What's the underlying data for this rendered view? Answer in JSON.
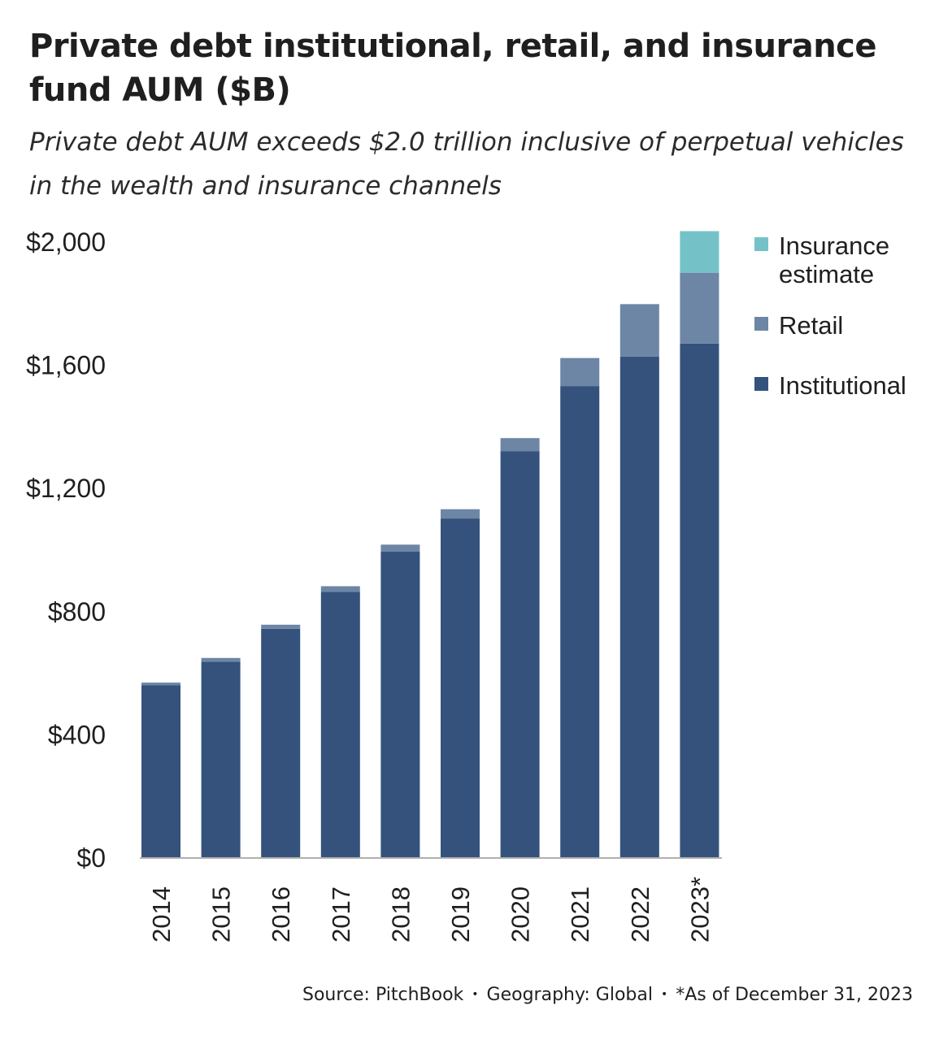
{
  "title": "Private debt institutional, retail, and insurance fund AUM ($B)",
  "subtitle": "Private debt AUM exceeds $2.0 trillion inclusive of perpetual vehicles in the wealth and insurance channels",
  "source": {
    "source_text": "Source: PitchBook",
    "geography_text": "Geography: Global",
    "note_text": "*As of December 31, 2023",
    "separator": "•"
  },
  "colors": {
    "institutional": "#34527c",
    "retail": "#6d86a6",
    "insurance": "#74c2c8",
    "axis": "#b0b0b0",
    "tick_text": "#1f1f1f"
  },
  "chart_data": {
    "type": "bar",
    "stacked": true,
    "title": "Private debt institutional, retail, and insurance fund AUM ($B)",
    "xlabel": "",
    "ylabel": "",
    "ylim": [
      0,
      2000
    ],
    "yticks": [
      0,
      400,
      800,
      1200,
      1600,
      2000
    ],
    "ytick_labels": [
      "$0",
      "$400",
      "$800",
      "$1,200",
      "$1,600",
      "$2,000"
    ],
    "categories": [
      "2014",
      "2015",
      "2016",
      "2017",
      "2018",
      "2019",
      "2020",
      "2021",
      "2022",
      "2023*"
    ],
    "series": [
      {
        "name": "Institutional",
        "color_key": "institutional",
        "values": [
          558,
          635,
          742,
          862,
          992,
          1100,
          1318,
          1530,
          1626,
          1668
        ]
      },
      {
        "name": "Retail",
        "color_key": "retail",
        "values": [
          9,
          12,
          13,
          18,
          23,
          30,
          43,
          91,
          170,
          230
        ]
      },
      {
        "name": "Insurance estimate",
        "color_key": "insurance",
        "values": [
          0,
          0,
          0,
          0,
          0,
          0,
          0,
          0,
          0,
          135
        ]
      }
    ],
    "legend": {
      "position": "top-right",
      "order": [
        "Insurance estimate",
        "Retail",
        "Institutional"
      ],
      "display_lines": {
        "Insurance estimate": [
          "Insurance",
          "estimate"
        ],
        "Retail": [
          "Retail"
        ],
        "Institutional": [
          "Institutional"
        ]
      }
    },
    "grid": false
  }
}
